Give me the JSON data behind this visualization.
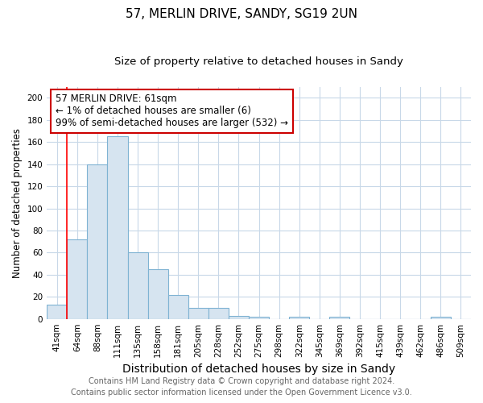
{
  "title": "57, MERLIN DRIVE, SANDY, SG19 2UN",
  "subtitle": "Size of property relative to detached houses in Sandy",
  "xlabel": "Distribution of detached houses by size in Sandy",
  "ylabel": "Number of detached properties",
  "categories": [
    "41sqm",
    "64sqm",
    "88sqm",
    "111sqm",
    "135sqm",
    "158sqm",
    "181sqm",
    "205sqm",
    "228sqm",
    "252sqm",
    "275sqm",
    "298sqm",
    "322sqm",
    "345sqm",
    "369sqm",
    "392sqm",
    "415sqm",
    "439sqm",
    "462sqm",
    "486sqm",
    "509sqm"
  ],
  "values": [
    13,
    72,
    140,
    165,
    60,
    45,
    22,
    10,
    10,
    3,
    2,
    0,
    2,
    0,
    2,
    0,
    0,
    0,
    0,
    2,
    0
  ],
  "bar_color": "#d6e4f0",
  "bar_edge_color": "#7fb3d3",
  "red_line_x": 0.5,
  "annotation_line1": "57 MERLIN DRIVE: 61sqm",
  "annotation_line2": "← 1% of detached houses are smaller (6)",
  "annotation_line3": "99% of semi-detached houses are larger (532) →",
  "annotation_box_color": "#ffffff",
  "annotation_box_edge": "#cc0000",
  "ylim": [
    0,
    210
  ],
  "yticks": [
    0,
    20,
    40,
    60,
    80,
    100,
    120,
    140,
    160,
    180,
    200
  ],
  "footer1": "Contains HM Land Registry data © Crown copyright and database right 2024.",
  "footer2": "Contains public sector information licensed under the Open Government Licence v3.0.",
  "bg_color": "#ffffff",
  "plot_bg_color": "#ffffff",
  "grid_color": "#c8d8e8",
  "title_fontsize": 11,
  "subtitle_fontsize": 9.5,
  "xlabel_fontsize": 10,
  "ylabel_fontsize": 8.5,
  "tick_fontsize": 7.5,
  "footer_fontsize": 7,
  "ann_fontsize": 8.5
}
